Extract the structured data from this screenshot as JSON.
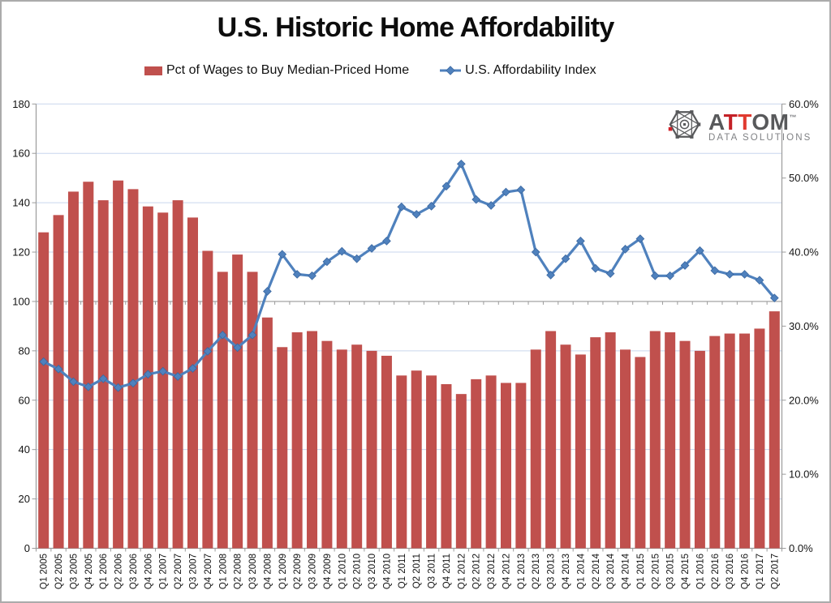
{
  "title": "U.S. Historic Home Affordability",
  "legend": {
    "items": [
      {
        "label": "Pct of Wages to Buy Median-Priced Home",
        "swatch": "bar-swatch",
        "color": "#C0504D"
      },
      {
        "label": "U.S. Affordability Index",
        "swatch": "line-diamond-swatch",
        "color": "#4F81BD"
      }
    ]
  },
  "logo": {
    "brand_a": "A",
    "brand_t1": "T",
    "brand_t2": "T",
    "brand_om": "OM",
    "tm": "™",
    "subtitle": "DATA SOLUTIONS"
  },
  "colors": {
    "bar": "#C0504D",
    "line": "#4F81BD",
    "line_marker_edge": "#3A67A0",
    "gridline": "#C9D6EE",
    "axis": "#9B9B9B",
    "logo_gray": "#58595B",
    "logo_red_t1": "#C42127",
    "logo_red_t2": "#E03A2F"
  },
  "chart_data": {
    "type": "bar",
    "subtype": "combo-bar-line-dual-axis",
    "title": "U.S. Historic Home Affordability",
    "xlabel": "",
    "ylabel_left": "",
    "ylabel_right": "",
    "grid": "horizontal",
    "legend_position": "top",
    "categories": [
      "Q1 2005",
      "Q2 2005",
      "Q3 2005",
      "Q4 2005",
      "Q1 2006",
      "Q2 2006",
      "Q3 2006",
      "Q4 2006",
      "Q1 2007",
      "Q2 2007",
      "Q3 2007",
      "Q4 2007",
      "Q1 2008",
      "Q2 2008",
      "Q3 2008",
      "Q4 2008",
      "Q1 2009",
      "Q2 2009",
      "Q3 2009",
      "Q4 2009",
      "Q1 2010",
      "Q2 2010",
      "Q3 2010",
      "Q4 2010",
      "Q1 2011",
      "Q2 2011",
      "Q3 2011",
      "Q4 2011",
      "Q1 2012",
      "Q2 2012",
      "Q3 2012",
      "Q4 2012",
      "Q1 2013",
      "Q2 2013",
      "Q3 2013",
      "Q4 2013",
      "Q1 2014",
      "Q2 2014",
      "Q3 2014",
      "Q4 2014",
      "Q1 2015",
      "Q2 2015",
      "Q3 2015",
      "Q4 2015",
      "Q1 2016",
      "Q2 2016",
      "Q3 2016",
      "Q4 2016",
      "Q1 2017",
      "Q2 2017"
    ],
    "series": [
      {
        "name": "Pct of Wages to Buy Median-Priced Home",
        "type": "bar",
        "axis": "left",
        "color": "#C0504D",
        "values": [
          128,
          135,
          144.5,
          148.5,
          141,
          149,
          145.5,
          138.5,
          136,
          141,
          134,
          120.5,
          112,
          119,
          112,
          93.5,
          81.5,
          87.5,
          88,
          84,
          80.5,
          82.5,
          80,
          78,
          70,
          72,
          70,
          66.5,
          62.5,
          68.5,
          70,
          67,
          67,
          80.5,
          88,
          82.5,
          78.5,
          85.5,
          87.5,
          80.5,
          77.5,
          88,
          87.5,
          84,
          80,
          86,
          87,
          87,
          89,
          96
        ]
      },
      {
        "name": "U.S. Affordability Index",
        "type": "line",
        "axis": "right",
        "marker": "diamond",
        "color": "#4F81BD",
        "values_pct": [
          25.2,
          24.2,
          22.5,
          21.8,
          22.9,
          21.7,
          22.3,
          23.5,
          23.9,
          23.2,
          24.3,
          26.6,
          28.8,
          27.1,
          28.8,
          34.7,
          39.7,
          37.0,
          36.8,
          38.7,
          40.1,
          39.1,
          40.5,
          41.5,
          46.1,
          45.1,
          46.2,
          48.9,
          51.9,
          47.1,
          46.3,
          48.1,
          48.4,
          40.0,
          36.9,
          39.1,
          41.5,
          37.8,
          37.1,
          40.4,
          41.8,
          36.8,
          36.8,
          38.2,
          40.2,
          37.5,
          37.0,
          37.0,
          36.2,
          33.8
        ]
      }
    ],
    "left_axis": {
      "min": 0,
      "max": 180,
      "step": 20,
      "tick_labels": [
        "180",
        "160",
        "140",
        "120",
        "100",
        "80",
        "60",
        "40",
        "20",
        "0"
      ]
    },
    "right_axis": {
      "min": 0,
      "max": 60,
      "step": 10,
      "tick_labels": [
        "60.0%",
        "50.0%",
        "40.0%",
        "30.0%",
        "20.0%",
        "10.0%",
        "0.0%"
      ]
    },
    "secondary_category_axis_at_left_value": 100
  }
}
